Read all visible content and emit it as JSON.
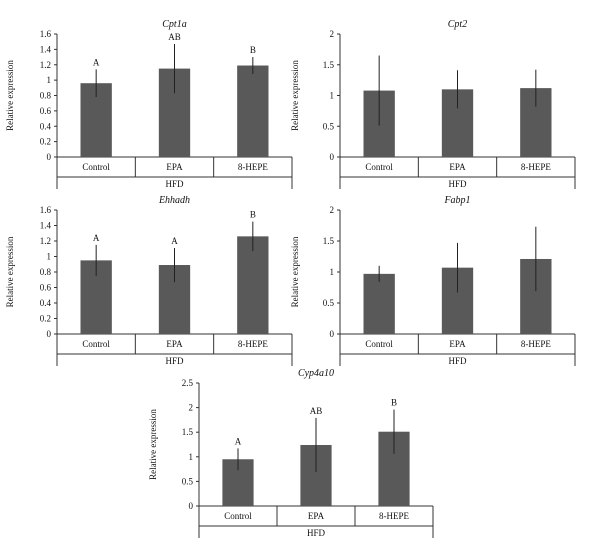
{
  "chart_data": [
    {
      "type": "bar",
      "title": "Cpt1a",
      "ylabel": "Relative expression",
      "group_label": "HFD",
      "categories": [
        "Control",
        "EPA",
        "8-HEPE"
      ],
      "values": [
        0.96,
        1.15,
        1.19
      ],
      "errors": [
        0.18,
        0.32,
        0.11
      ],
      "annotations": [
        "A",
        "AB",
        "B"
      ],
      "ylim": [
        0,
        1.6
      ],
      "yticks": [
        "0",
        "0.2",
        "0.4",
        "0.6",
        "0.8",
        "1",
        "1.2",
        "1.4",
        "1.6"
      ],
      "bar_color": "#595959"
    },
    {
      "type": "bar",
      "title": "Cpt2",
      "ylabel": "Relative expression",
      "group_label": "HFD",
      "categories": [
        "Control",
        "EPA",
        "8-HEPE"
      ],
      "values": [
        1.08,
        1.1,
        1.12
      ],
      "errors": [
        0.57,
        0.31,
        0.3
      ],
      "annotations": [
        "",
        "",
        ""
      ],
      "ylim": [
        0,
        2
      ],
      "yticks": [
        "0",
        "0.5",
        "1",
        "1.5",
        "2"
      ],
      "bar_color": "#595959"
    },
    {
      "type": "bar",
      "title": "Ehhadh",
      "ylabel": "Relative expression",
      "group_label": "HFD",
      "categories": [
        "Control",
        "EPA",
        "8-HEPE"
      ],
      "values": [
        0.95,
        0.89,
        1.26
      ],
      "errors": [
        0.2,
        0.22,
        0.19
      ],
      "annotations": [
        "A",
        "A",
        "B"
      ],
      "ylim": [
        0,
        1.6
      ],
      "yticks": [
        "0",
        "0.2",
        "0.4",
        "0.6",
        "0.8",
        "1",
        "1.2",
        "1.4",
        "1.6"
      ],
      "bar_color": "#595959"
    },
    {
      "type": "bar",
      "title": "Fabp1",
      "ylabel": "Relative expression",
      "group_label": "HFD",
      "categories": [
        "Control",
        "EPA",
        "8-HEPE"
      ],
      "values": [
        0.97,
        1.07,
        1.21
      ],
      "errors": [
        0.13,
        0.4,
        0.52
      ],
      "annotations": [
        "",
        "",
        ""
      ],
      "ylim": [
        0,
        2
      ],
      "yticks": [
        "0",
        "0.5",
        "1",
        "1.5",
        "2"
      ],
      "bar_color": "#595959"
    },
    {
      "type": "bar",
      "title": "Cyp4a10",
      "ylabel": "Relative expression",
      "group_label": "HFD",
      "categories": [
        "Control",
        "EPA",
        "8-HEPE"
      ],
      "values": [
        0.95,
        1.24,
        1.51
      ],
      "errors": [
        0.22,
        0.55,
        0.45
      ],
      "annotations": [
        "A",
        "AB",
        "B"
      ],
      "ylim": [
        0,
        2.5
      ],
      "yticks": [
        "0",
        "0.5",
        "1",
        "1.5",
        "2",
        "2.5"
      ],
      "bar_color": "#595959"
    }
  ]
}
